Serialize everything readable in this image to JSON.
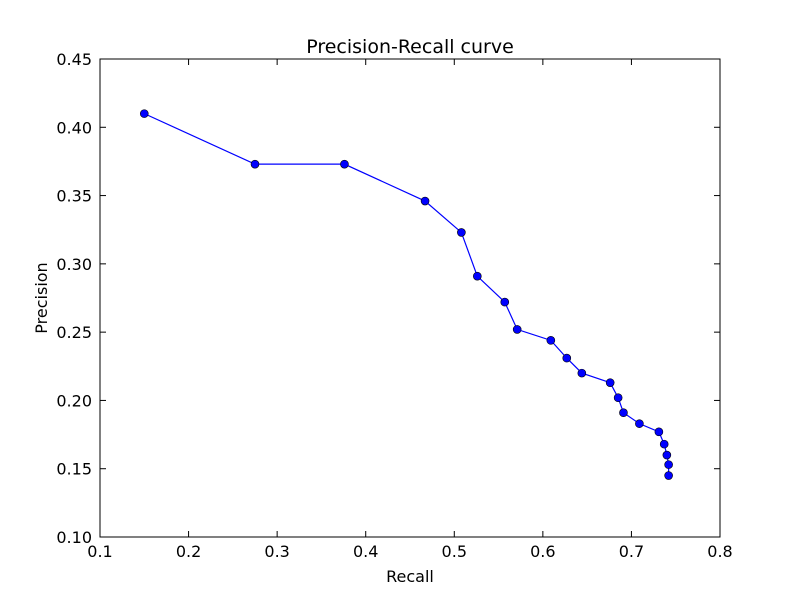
{
  "chart_data": {
    "type": "line",
    "title": "Precision-Recall curve",
    "xlabel": "Recall",
    "ylabel": "Precision",
    "xlim": [
      0.1,
      0.8
    ],
    "ylim": [
      0.1,
      0.45
    ],
    "xticks": [
      "0.1",
      "0.2",
      "0.3",
      "0.4",
      "0.5",
      "0.6",
      "0.7",
      "0.8"
    ],
    "yticks": [
      "0.10",
      "0.15",
      "0.20",
      "0.25",
      "0.30",
      "0.35",
      "0.40",
      "0.45"
    ],
    "grid": false,
    "line_color": "#0000ff",
    "marker": "circle",
    "series": [
      {
        "x": [
          0.15,
          0.275,
          0.376,
          0.467,
          0.508,
          0.526,
          0.557,
          0.571,
          0.609,
          0.627,
          0.644,
          0.676,
          0.685,
          0.691,
          0.709,
          0.731,
          0.737,
          0.74,
          0.742,
          0.742
        ],
        "y": [
          0.41,
          0.373,
          0.373,
          0.346,
          0.323,
          0.291,
          0.272,
          0.252,
          0.244,
          0.231,
          0.22,
          0.213,
          0.202,
          0.191,
          0.183,
          0.177,
          0.168,
          0.16,
          0.153,
          0.145
        ]
      }
    ]
  }
}
